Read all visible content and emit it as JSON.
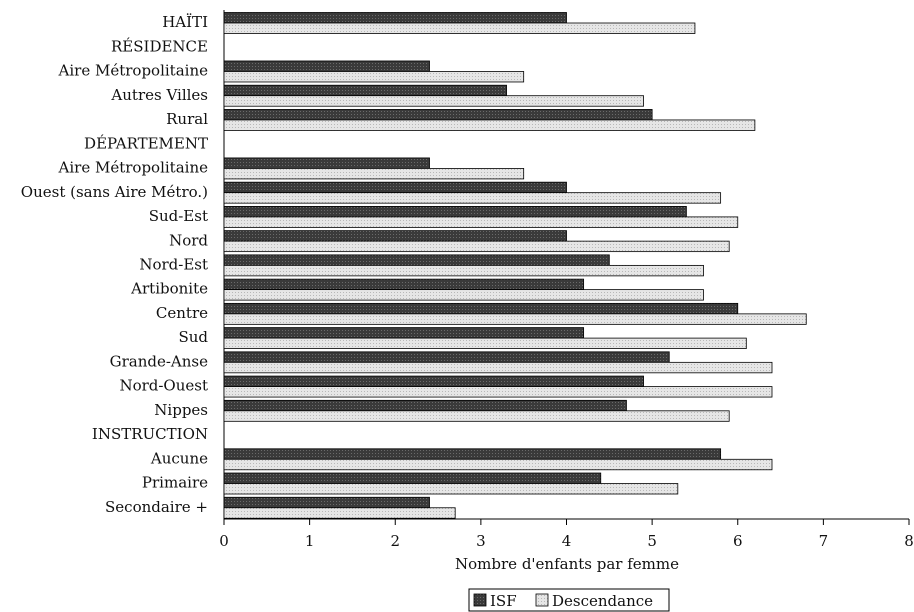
{
  "chart_data": {
    "type": "bar",
    "orientation": "horizontal",
    "categories": [
      "HAÏTI",
      "RÉSIDENCE",
      "Aire Métropolitaine",
      "Autres Villes",
      "Rural",
      "DÉPARTEMENT",
      "Aire Métropolitaine",
      "Ouest (sans Aire Métro.)",
      "Sud-Est",
      "Nord",
      "Nord-Est",
      "Artibonite",
      "Centre",
      "Sud",
      "Grande-Anse",
      "Nord-Ouest",
      "Nippes",
      "INSTRUCTION",
      "Aucune",
      "Primaire",
      "Secondaire +"
    ],
    "series": [
      {
        "name": "ISF",
        "color": "#3a3a3a",
        "values": [
          4.0,
          null,
          2.4,
          3.3,
          5.0,
          null,
          2.4,
          4.0,
          5.4,
          4.0,
          4.5,
          4.2,
          6.0,
          4.2,
          5.2,
          4.9,
          4.7,
          null,
          5.8,
          4.4,
          2.4
        ]
      },
      {
        "name": "Descendance",
        "color": "#e4e4e4",
        "values": [
          5.5,
          null,
          3.5,
          4.9,
          6.2,
          null,
          3.5,
          5.8,
          6.0,
          5.9,
          5.6,
          5.6,
          6.8,
          6.1,
          6.4,
          6.4,
          5.9,
          null,
          6.4,
          5.3,
          2.7
        ]
      }
    ],
    "xlim": [
      0,
      8
    ],
    "xticks": [
      "0",
      "1",
      "2",
      "3",
      "4",
      "5",
      "6",
      "7",
      "8"
    ],
    "xlabel": "Nombre d'enfants par femme",
    "ylabel": "",
    "title": "",
    "legend_position": "bottom-center",
    "grid": false
  }
}
